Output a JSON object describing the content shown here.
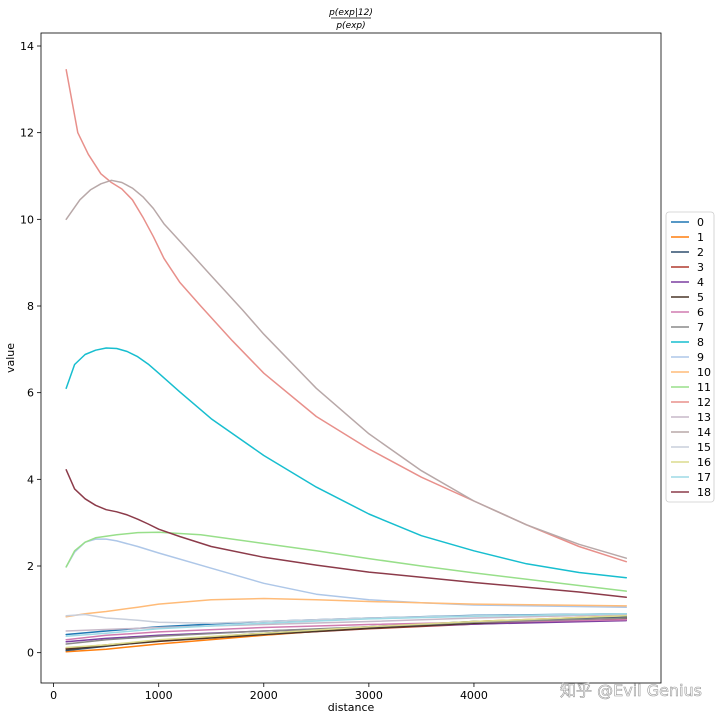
{
  "chart_data": {
    "type": "line",
    "title_numerator": "p(exp|12)",
    "title_denominator": "p(exp)",
    "xlabel": "distance",
    "ylabel": "value",
    "xlim": [
      -120,
      5780
    ],
    "ylim": [
      -0.7,
      14.3
    ],
    "xticks": [
      0,
      1000,
      2000,
      3000,
      4000
    ],
    "xtick_labels": [
      "0",
      "1000",
      "2000",
      "3000",
      "4000"
    ],
    "yticks": [
      0,
      2,
      4,
      6,
      8,
      10,
      12,
      14
    ],
    "ytick_labels": [
      "0",
      "2",
      "4",
      "6",
      "8",
      "10",
      "12",
      "14"
    ],
    "grid": false,
    "legend": "right-outside",
    "watermark": "知乎 @Evil Genius",
    "series": [
      {
        "name": "0",
        "color": "#1f77b4",
        "x": [
          120,
          500,
          1000,
          2000,
          3000,
          4000,
          5450
        ],
        "y": [
          0.42,
          0.5,
          0.6,
          0.72,
          0.8,
          0.86,
          0.9
        ]
      },
      {
        "name": "1",
        "color": "#ff7f0e",
        "x": [
          120,
          500,
          1000,
          2000,
          3000,
          4000,
          5450
        ],
        "y": [
          0.02,
          0.08,
          0.2,
          0.4,
          0.58,
          0.72,
          0.85
        ]
      },
      {
        "name": "2",
        "color": "#2f4f6f",
        "x": [
          120,
          500,
          1000,
          2000,
          3000,
          4000,
          5450
        ],
        "y": [
          0.05,
          0.15,
          0.28,
          0.45,
          0.6,
          0.72,
          0.82
        ]
      },
      {
        "name": "3",
        "color": "#b03a2e",
        "x": [
          120,
          500,
          1000,
          2000,
          3000,
          4000,
          5450
        ],
        "y": [
          0.1,
          0.18,
          0.28,
          0.42,
          0.55,
          0.66,
          0.78
        ]
      },
      {
        "name": "4",
        "color": "#7b3fa0",
        "x": [
          120,
          500,
          1000,
          2000,
          3000,
          4000,
          5450
        ],
        "y": [
          0.25,
          0.33,
          0.4,
          0.5,
          0.58,
          0.66,
          0.74
        ]
      },
      {
        "name": "5",
        "color": "#4a3728",
        "x": [
          120,
          500,
          1000,
          2000,
          3000,
          4000,
          5450
        ],
        "y": [
          0.08,
          0.16,
          0.26,
          0.42,
          0.56,
          0.68,
          0.8
        ]
      },
      {
        "name": "6",
        "color": "#d07bb0",
        "x": [
          120,
          500,
          1000,
          2000,
          3000,
          4000,
          5450
        ],
        "y": [
          0.3,
          0.4,
          0.48,
          0.58,
          0.65,
          0.7,
          0.76
        ]
      },
      {
        "name": "7",
        "color": "#8a8a8a",
        "x": [
          120,
          500,
          1000,
          2000,
          3000,
          4000,
          5450
        ],
        "y": [
          0.2,
          0.3,
          0.38,
          0.5,
          0.6,
          0.7,
          0.8
        ]
      },
      {
        "name": "8",
        "color": "#17becf",
        "x": [
          120,
          200,
          300,
          400,
          500,
          600,
          700,
          800,
          900,
          1000,
          1200,
          1500,
          2000,
          2500,
          3000,
          3500,
          4000,
          4500,
          5000,
          5450
        ],
        "y": [
          6.1,
          6.65,
          6.88,
          6.98,
          7.03,
          7.02,
          6.95,
          6.83,
          6.66,
          6.45,
          6.02,
          5.4,
          4.55,
          3.82,
          3.2,
          2.7,
          2.35,
          2.05,
          1.85,
          1.73
        ]
      },
      {
        "name": "9",
        "color": "#aec7e8",
        "x": [
          120,
          200,
          300,
          400,
          500,
          600,
          800,
          1000,
          1500,
          2000,
          2500,
          3000,
          3500,
          4000,
          5450
        ],
        "y": [
          1.98,
          2.32,
          2.55,
          2.62,
          2.62,
          2.58,
          2.45,
          2.3,
          1.95,
          1.6,
          1.35,
          1.22,
          1.15,
          1.1,
          1.05
        ]
      },
      {
        "name": "10",
        "color": "#ffbb78",
        "x": [
          120,
          300,
          500,
          800,
          1000,
          1500,
          2000,
          2500,
          3000,
          4000,
          5450
        ],
        "y": [
          0.83,
          0.9,
          0.95,
          1.05,
          1.12,
          1.22,
          1.25,
          1.22,
          1.18,
          1.12,
          1.08
        ]
      },
      {
        "name": "11",
        "color": "#98df8a",
        "x": [
          120,
          200,
          300,
          400,
          600,
          800,
          1000,
          1400,
          2000,
          2500,
          3000,
          3500,
          4000,
          5000,
          5450
        ],
        "y": [
          1.98,
          2.35,
          2.55,
          2.65,
          2.72,
          2.77,
          2.78,
          2.72,
          2.52,
          2.35,
          2.17,
          2.0,
          1.84,
          1.55,
          1.42
        ]
      },
      {
        "name": "12",
        "color": "#e8908b",
        "x": [
          120,
          230,
          330,
          450,
          550,
          650,
          750,
          850,
          950,
          1050,
          1200,
          1400,
          1700,
          2000,
          2500,
          3000,
          3500,
          4000,
          4500,
          5000,
          5450
        ],
        "y": [
          13.45,
          12.0,
          11.5,
          11.05,
          10.85,
          10.7,
          10.45,
          10.05,
          9.6,
          9.1,
          8.55,
          8.0,
          7.2,
          6.45,
          5.45,
          4.7,
          4.05,
          3.5,
          2.95,
          2.45,
          2.1
        ]
      },
      {
        "name": "13",
        "color": "#c7b8c8",
        "x": [
          120,
          1000,
          2000,
          3000,
          4000,
          5450
        ],
        "y": [
          0.5,
          0.58,
          0.65,
          0.72,
          0.8,
          0.88
        ]
      },
      {
        "name": "14",
        "color": "#b8a8a8",
        "x": [
          120,
          250,
          350,
          450,
          550,
          650,
          750,
          850,
          950,
          1050,
          1200,
          1500,
          1800,
          2000,
          2500,
          3000,
          3500,
          4000,
          4500,
          5000,
          5450
        ],
        "y": [
          10.0,
          10.45,
          10.68,
          10.82,
          10.9,
          10.85,
          10.72,
          10.52,
          10.25,
          9.9,
          9.5,
          8.7,
          7.9,
          7.35,
          6.1,
          5.05,
          4.2,
          3.5,
          2.95,
          2.5,
          2.18
        ]
      },
      {
        "name": "15",
        "color": "#c8cfdc",
        "x": [
          120,
          300,
          500,
          800,
          1000,
          1500,
          2000,
          3000,
          4000,
          5450
        ],
        "y": [
          0.85,
          0.88,
          0.8,
          0.75,
          0.7,
          0.68,
          0.72,
          0.8,
          0.85,
          0.9
        ]
      },
      {
        "name": "16",
        "color": "#dbdb8d",
        "x": [
          120,
          500,
          1000,
          2000,
          3000,
          4000,
          5450
        ],
        "y": [
          0.12,
          0.18,
          0.3,
          0.45,
          0.6,
          0.72,
          0.85
        ]
      },
      {
        "name": "17",
        "color": "#9edae5",
        "x": [
          120,
          500,
          1000,
          2000,
          3000,
          4000,
          5450
        ],
        "y": [
          0.38,
          0.45,
          0.55,
          0.68,
          0.78,
          0.84,
          0.9
        ]
      },
      {
        "name": "18",
        "color": "#8c3b4a",
        "x": [
          120,
          200,
          300,
          400,
          500,
          600,
          700,
          800,
          900,
          1000,
          1200,
          1500,
          2000,
          2500,
          3000,
          3500,
          4000,
          4500,
          5000,
          5450
        ],
        "y": [
          4.22,
          3.78,
          3.55,
          3.4,
          3.3,
          3.25,
          3.18,
          3.08,
          2.97,
          2.85,
          2.68,
          2.45,
          2.2,
          2.02,
          1.86,
          1.74,
          1.62,
          1.51,
          1.4,
          1.28
        ]
      }
    ]
  }
}
